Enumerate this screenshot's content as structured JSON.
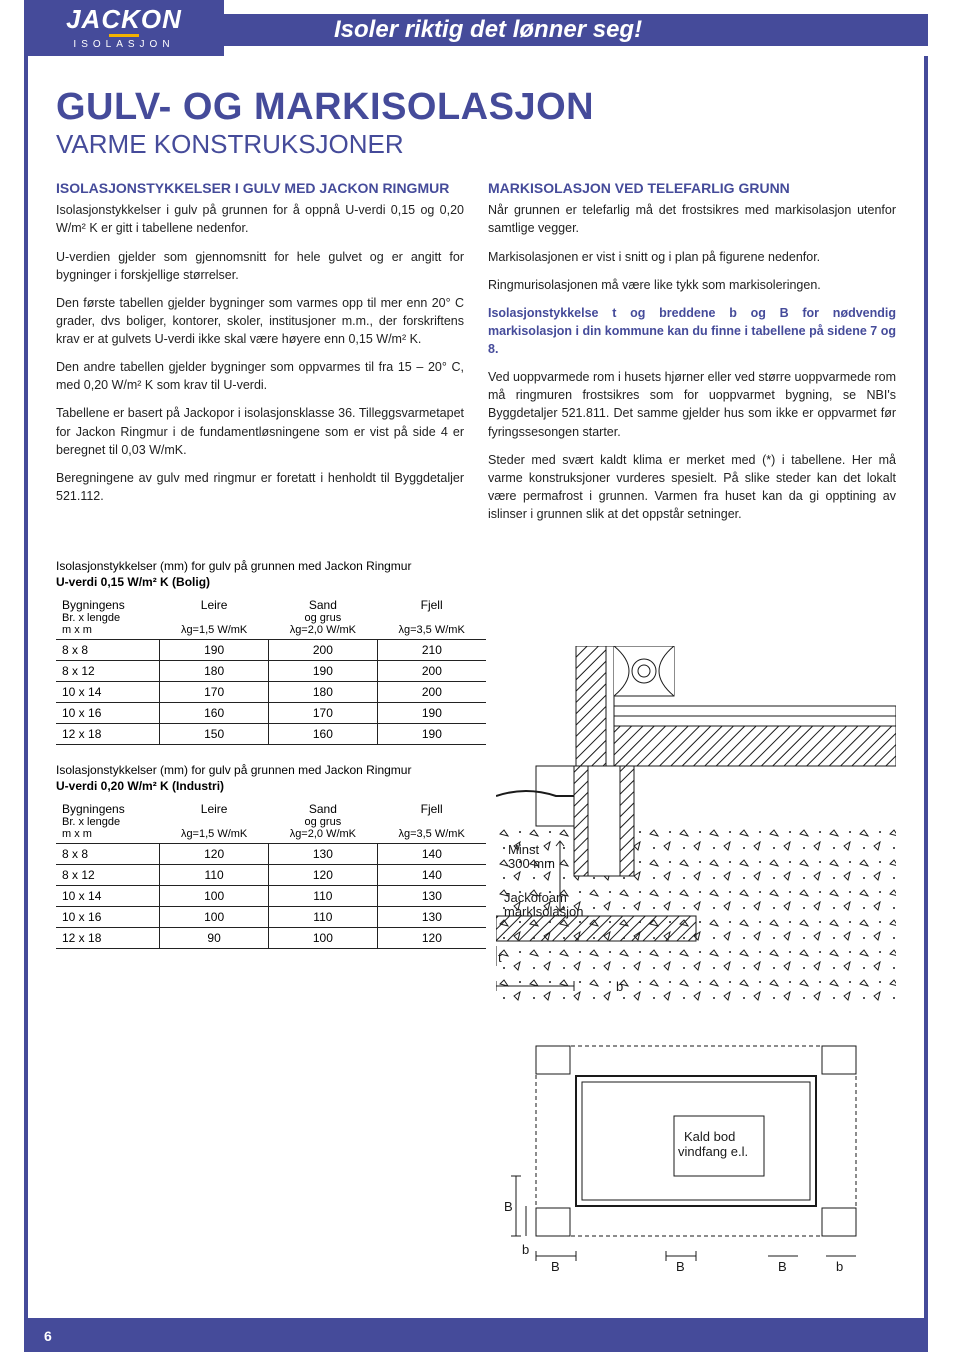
{
  "brand": {
    "logo_main": "JACKON",
    "logo_sub": "ISOLASJON",
    "slogan": "Isoler riktig det lønner seg!"
  },
  "headings": {
    "title_main": "GULV- OG MARKISOLASJON",
    "title_sub": "VARME KONSTRUKSJONER"
  },
  "col_left": {
    "h1": "ISOLASJONSTYKKELSER I GULV MED JACKON RINGMUR",
    "p1": "Isolasjonstykkelser i gulv på grunnen for å oppnå U-verdi 0,15 og 0,20 W/m² K er gitt i tabellene nedenfor.",
    "p2": "U-verdien gjelder som gjennomsnitt for hele gulvet og er angitt for bygninger i forskjellige størrelser.",
    "p3": "Den første tabellen gjelder bygninger som varmes opp til mer enn 20° C grader, dvs boliger, kontorer, skoler, institusjoner m.m., der forskriftens krav er at gulvets U-verdi ikke skal være høyere enn 0,15 W/m² K.",
    "p4": "Den andre tabellen gjelder bygninger som oppvarmes til fra 15 – 20° C, med 0,20 W/m² K som krav til U-verdi.",
    "p5": "Tabellene er basert på Jackopor i isolasjonsklasse 36. Tilleggsvarmetapet for Jackon Ringmur i de fundament­løsningene som er vist på side 4 er beregnet til 0,03 W/mK.",
    "p6": "Beregningene av gulv med ringmur er foretatt i henholdt til Byggdetaljer 521.112."
  },
  "col_right": {
    "h1": "MARKISOLASJON VED TELEFARLIG GRUNN",
    "p1": "Når grunnen er telefarlig må det frostsikres med mark­isolasjon utenfor samtlige vegger.",
    "p2": "Markisolasjonen er vist i snitt og i plan på figurene nedenfor.",
    "p3": "Ringmurisolasjonen må være like tykk som markisoler­ingen.",
    "p4_bold": "Isolasjonstykkelse t og breddene b og B for nød­vendig markisolasjon i din kommune kan du finne i tabellene på sidene 7 og 8.",
    "p5": "Ved uoppvarmede rom i husets hjørner eller ved større uopp­varmede rom må ringmuren frostsikres som for uoppvarmet bygning, se NBI's Byggdetaljer 521.811. Det samme gjelder hus som ikke er oppvarmet før fyringssesongen starter.",
    "p6": "Steder med svært kaldt klima er merket med (*) i tabellene. Her må varme konstruksjoner vurderes spesielt. På slike steder kan det lokalt være permafrost i grunnen. Varmen fra huset kan da gi opptining av islinser i grunnen slik at det oppstår setninger."
  },
  "table1": {
    "title": "Isolasjonstykkelser (mm) for gulv på grunnen med Jackon Ringmur",
    "subtitle": "U-verdi 0,15 W/m² K (Bolig)",
    "col_hdrs": {
      "c1a": "Bygningens",
      "c1b": "Br. x lengde",
      "c1c": "m x m",
      "c2a": "Leire",
      "c2b": "λg=1,5 W/mK",
      "c3a": "Sand",
      "c3b": "og grus",
      "c3c": "λg=2,0 W/mK",
      "c4a": "Fjell",
      "c4b": "λg=3,5 W/mK"
    },
    "rows": [
      {
        "dim": "8 x 8",
        "leire": "190",
        "sand": "200",
        "fjell": "210"
      },
      {
        "dim": "8 x 12",
        "leire": "180",
        "sand": "190",
        "fjell": "200"
      },
      {
        "dim": "10 x 14",
        "leire": "170",
        "sand": "180",
        "fjell": "200"
      },
      {
        "dim": "10 x 16",
        "leire": "160",
        "sand": "170",
        "fjell": "190"
      },
      {
        "dim": "12 x 18",
        "leire": "150",
        "sand": "160",
        "fjell": "190"
      }
    ]
  },
  "table2": {
    "title": "Isolasjonstykkelser (mm) for gulv på grunnen med Jackon Ringmur",
    "subtitle": "U-verdi 0,20 W/m² K (Industri)",
    "col_hdrs": {
      "c1a": "Bygningens",
      "c1b": "Br. x lengde",
      "c1c": "m x m",
      "c2a": "Leire",
      "c2b": "λg=1,5 W/mK",
      "c3a": "Sand",
      "c3b": "og grus",
      "c3c": "λg=2,0 W/mK",
      "c4a": "Fjell",
      "c4b": "λg=3,5 W/mK"
    },
    "rows": [
      {
        "dim": "8 x 8",
        "leire": "120",
        "sand": "130",
        "fjell": "140"
      },
      {
        "dim": "8 x 12",
        "leire": "110",
        "sand": "120",
        "fjell": "140"
      },
      {
        "dim": "10 x 14",
        "leire": "100",
        "sand": "110",
        "fjell": "130"
      },
      {
        "dim": "10 x 16",
        "leire": "100",
        "sand": "110",
        "fjell": "130"
      },
      {
        "dim": "12 x 18",
        "leire": "90",
        "sand": "100",
        "fjell": "120"
      }
    ]
  },
  "diagram_cross": {
    "labels": {
      "minst": "Minst",
      "mm300": "300 mm",
      "brand": "Jackofoam",
      "brand2": "markisolasjon",
      "t": "t",
      "b": "b"
    },
    "colors": {
      "stroke": "#1a1a1a",
      "hatch": "#1a1a1a",
      "bg": "#ffffff"
    }
  },
  "diagram_plan": {
    "labels": {
      "kald": "Kald bod",
      "vind": "vindfang e.l.",
      "B": "B",
      "b": "b"
    },
    "colors": {
      "stroke": "#1a1a1a"
    }
  },
  "page_number": "6",
  "colors": {
    "brand": "#454b9a",
    "accent": "#f2b200",
    "text": "#222222"
  }
}
